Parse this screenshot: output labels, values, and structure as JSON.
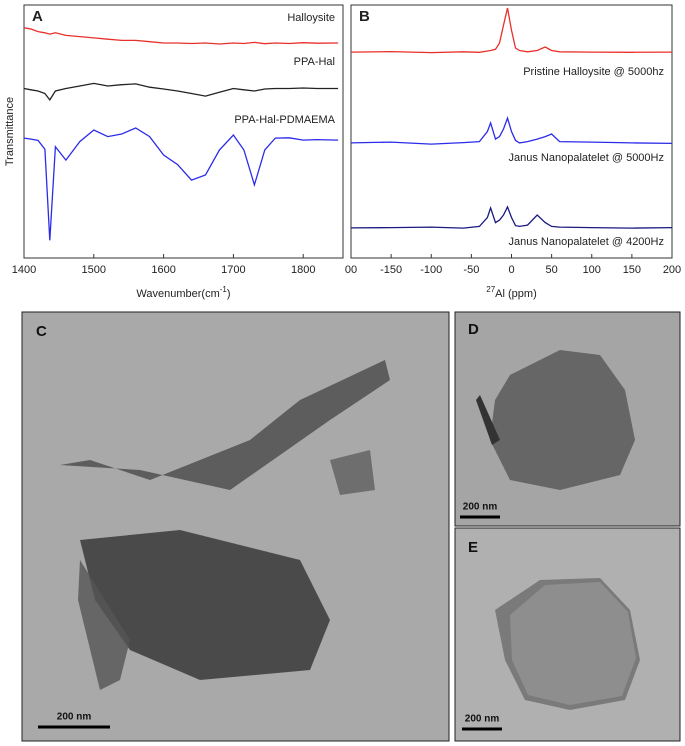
{
  "chart_data": [
    {
      "type": "line",
      "panel": "A",
      "ylabel": "Transmittance",
      "xlabel": [
        "Wavenumber(cm",
        "-1",
        ")"
      ],
      "xlim": [
        1400,
        1857
      ],
      "xticks": [
        1400,
        1500,
        1600,
        1700,
        1800
      ],
      "ylim": [
        0,
        100
      ],
      "x": [
        1400,
        1410,
        1420,
        1430,
        1437,
        1445,
        1460,
        1480,
        1500,
        1520,
        1540,
        1560,
        1580,
        1600,
        1620,
        1640,
        1660,
        1680,
        1700,
        1715,
        1730,
        1745,
        1760,
        1780,
        1800,
        1820,
        1850
      ],
      "series": [
        {
          "name": "Halloysite",
          "color": "#e8302a",
          "values": [
            91,
            90.5,
            89.5,
            89,
            88.5,
            89,
            88,
            87.5,
            87,
            86.5,
            86,
            86,
            85.5,
            85,
            85,
            84.8,
            85,
            84.6,
            85,
            84.8,
            85.2,
            84.7,
            85,
            84.8,
            85.1,
            84.9,
            85
          ]
        },
        {
          "name": "PPA-Hal",
          "color": "#222222",
          "values": [
            67,
            66.5,
            66,
            65,
            62.5,
            66,
            67,
            68,
            69,
            68,
            68.5,
            68.8,
            67.5,
            66.8,
            66,
            65,
            64,
            65.5,
            67,
            66.5,
            66,
            66.8,
            67,
            67,
            67.2,
            67,
            67
          ]
        },
        {
          "name": "PPA-Hal-PDMAEMA",
          "color": "#2b2bea",
          "values": [
            47.4,
            47,
            46.5,
            43,
            7,
            44,
            38.7,
            46,
            50.6,
            48,
            49,
            51.4,
            48,
            40.7,
            36.9,
            30.8,
            32.8,
            42.7,
            48.6,
            42.7,
            28.9,
            42.7,
            47.4,
            47.5,
            46.6,
            46.8,
            46.6
          ]
        }
      ]
    },
    {
      "type": "line",
      "panel": "B",
      "xlabel": [
        "27",
        "Al (ppm)"
      ],
      "xlim": [
        -200,
        200
      ],
      "xticks": [
        {
          "value": -200,
          "label": "00"
        },
        -150,
        -100,
        -50,
        0,
        50,
        100,
        150,
        200
      ],
      "ylim": [
        0,
        100
      ],
      "x": [
        -200,
        -150,
        -100,
        -60,
        -40,
        -30,
        -26,
        -20,
        -15,
        -10,
        -5,
        0,
        5,
        10,
        20,
        32,
        42,
        50,
        60,
        100,
        150,
        200
      ],
      "series": [
        {
          "name": "Pristine Halloysite @ 5000hz",
          "color": "#e8302a",
          "values": [
            81.4,
            81.6,
            81.2,
            81.5,
            81.3,
            81.8,
            82,
            82.5,
            85,
            92,
            98.8,
            90,
            83,
            82,
            81.5,
            82,
            83.4,
            82,
            81.5,
            81.4,
            81.3,
            81.4
          ]
        },
        {
          "name": "Janus Nanopalatelet @ 5000Hz",
          "color": "#2b2bea",
          "values": [
            45.5,
            45.8,
            45,
            45.6,
            46,
            50,
            53.4,
            47,
            48,
            51,
            55.3,
            50,
            46.5,
            45.5,
            46,
            47,
            48,
            49,
            46,
            45.8,
            45.5,
            45.3
          ]
        },
        {
          "name": "Janus Nanopalatelet @ 4200Hz",
          "color": "#1a1a80",
          "values": [
            11.9,
            12,
            12.2,
            11.8,
            12.5,
            16,
            19.8,
            14,
            15,
            17,
            20.2,
            16,
            12.8,
            12.5,
            13,
            17,
            14,
            12.5,
            12.2,
            12,
            11.8,
            12
          ]
        }
      ]
    }
  ],
  "panels": [
    {
      "label": "C",
      "scale_bar": "200 nm"
    },
    {
      "label": "D",
      "scale_bar": "200 nm"
    },
    {
      "label": "E",
      "scale_bar": "200 nm"
    }
  ]
}
